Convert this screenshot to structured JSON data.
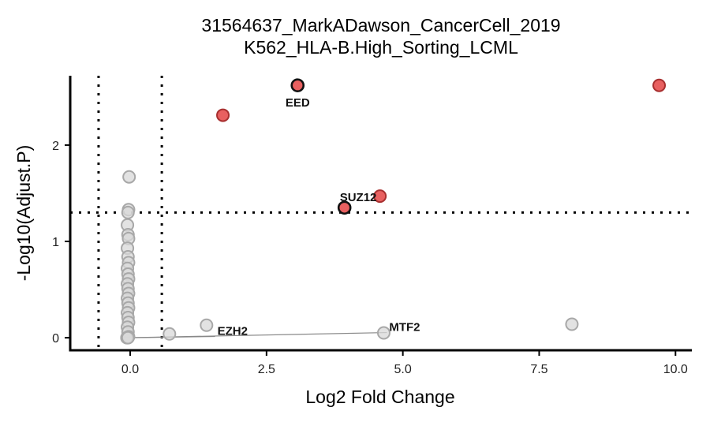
{
  "chart_data": {
    "type": "scatter",
    "title": "31564637_MarkADawson_CancerCell_2019",
    "subtitle": "K562_HLA-B.High_Sorting_LCML",
    "xlabel": "Log2 Fold Change",
    "ylabel": "-Log10(Adjust.P)",
    "xlim": [
      -1.1,
      10.3
    ],
    "ylim": [
      -0.13,
      2.72
    ],
    "xticks": [
      0,
      2.5,
      5,
      7.5,
      10
    ],
    "xtick_labels": [
      "0.0",
      "2.5",
      "5.0",
      "7.5",
      "10.0"
    ],
    "yticks": [
      0,
      1,
      2
    ],
    "ytick_labels": [
      "0",
      "1",
      "2"
    ],
    "thresholds": {
      "x": [
        -0.58,
        0.58
      ],
      "y": 1.3
    },
    "grid": false,
    "legend": "none",
    "colors": {
      "significant": "#e86060",
      "significant_stroke": "#a83030",
      "ns": "#d8d8d8",
      "ns_stroke": "#a8a8a8",
      "highlight_stroke": "#111111",
      "label_line": "#888888"
    },
    "significant_points": [
      {
        "x": 3.07,
        "y": 2.62,
        "highlight": true
      },
      {
        "x": 1.7,
        "y": 2.31,
        "highlight": false
      },
      {
        "x": 9.7,
        "y": 2.62,
        "highlight": false
      },
      {
        "x": 4.58,
        "y": 1.47,
        "highlight": false
      },
      {
        "x": 3.93,
        "y": 1.35,
        "highlight": true
      }
    ],
    "ns_points": [
      {
        "x": 8.1,
        "y": 0.14
      },
      {
        "x": 1.4,
        "y": 0.13
      },
      {
        "x": 0.72,
        "y": 0.04
      },
      {
        "x": 4.65,
        "y": 0.05
      },
      {
        "x": -0.02,
        "y": 1.67
      },
      {
        "x": -0.03,
        "y": 1.33
      },
      {
        "x": -0.04,
        "y": 1.3
      },
      {
        "x": -0.05,
        "y": 1.17
      },
      {
        "x": -0.04,
        "y": 1.07
      },
      {
        "x": -0.03,
        "y": 1.03
      },
      {
        "x": -0.05,
        "y": 0.93
      },
      {
        "x": -0.04,
        "y": 0.84
      },
      {
        "x": -0.03,
        "y": 0.78
      },
      {
        "x": -0.05,
        "y": 0.72
      },
      {
        "x": -0.04,
        "y": 0.66
      },
      {
        "x": -0.03,
        "y": 0.61
      },
      {
        "x": -0.05,
        "y": 0.56
      },
      {
        "x": -0.04,
        "y": 0.51
      },
      {
        "x": -0.03,
        "y": 0.46
      },
      {
        "x": -0.05,
        "y": 0.41
      },
      {
        "x": -0.04,
        "y": 0.36
      },
      {
        "x": -0.03,
        "y": 0.31
      },
      {
        "x": -0.05,
        "y": 0.26
      },
      {
        "x": -0.04,
        "y": 0.21
      },
      {
        "x": -0.03,
        "y": 0.16
      },
      {
        "x": -0.05,
        "y": 0.11
      },
      {
        "x": -0.04,
        "y": 0.06
      },
      {
        "x": -0.03,
        "y": 0.01
      },
      {
        "x": -0.06,
        "y": 0.0
      },
      {
        "x": -0.04,
        "y": 0.0
      }
    ],
    "labels": [
      {
        "text": "EED",
        "x": 3.07,
        "y": 2.62,
        "lx": 3.07,
        "ly": 2.4,
        "anchor": "middle",
        "line": false
      },
      {
        "text": "SUZ12",
        "x": 3.93,
        "y": 1.35,
        "lx": 3.93,
        "ly": 1.37,
        "anchor": "start",
        "line": false
      },
      {
        "text": "EZH2",
        "x": -0.04,
        "y": 0.0,
        "lx": 1.6,
        "ly": 0.03,
        "anchor": "start",
        "line": true
      },
      {
        "text": "MTF2",
        "x": -0.04,
        "y": 0.0,
        "lx": 4.75,
        "ly": 0.07,
        "anchor": "start",
        "line": true
      }
    ]
  }
}
